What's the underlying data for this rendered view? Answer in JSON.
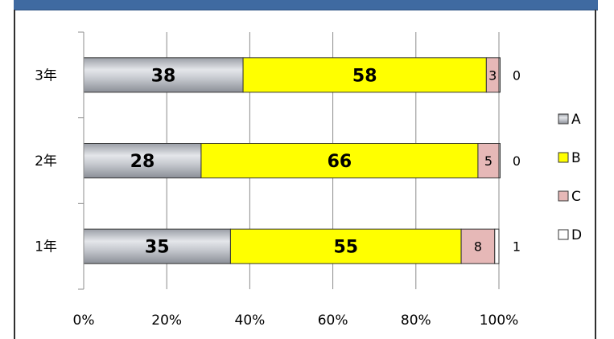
{
  "chart_data": {
    "type": "bar",
    "orientation": "horizontal",
    "stacked": "percent",
    "categories": [
      "3年",
      "2年",
      "1年"
    ],
    "series": [
      {
        "name": "A",
        "values": [
          38,
          28,
          35
        ],
        "color": "#a9acb4"
      },
      {
        "name": "B",
        "values": [
          58,
          66,
          55
        ],
        "color": "#ffff00"
      },
      {
        "name": "C",
        "values": [
          3,
          5,
          8
        ],
        "color": "#e6b8b7"
      },
      {
        "name": "D",
        "values": [
          0,
          0,
          1
        ],
        "color": "#ffffff"
      }
    ],
    "x_ticks": [
      "0%",
      "20%",
      "40%",
      "60%",
      "80%",
      "100%"
    ],
    "xlim": [
      0,
      100
    ],
    "grid": true,
    "legend_position": "right",
    "title": "",
    "xlabel": "",
    "ylabel": ""
  }
}
